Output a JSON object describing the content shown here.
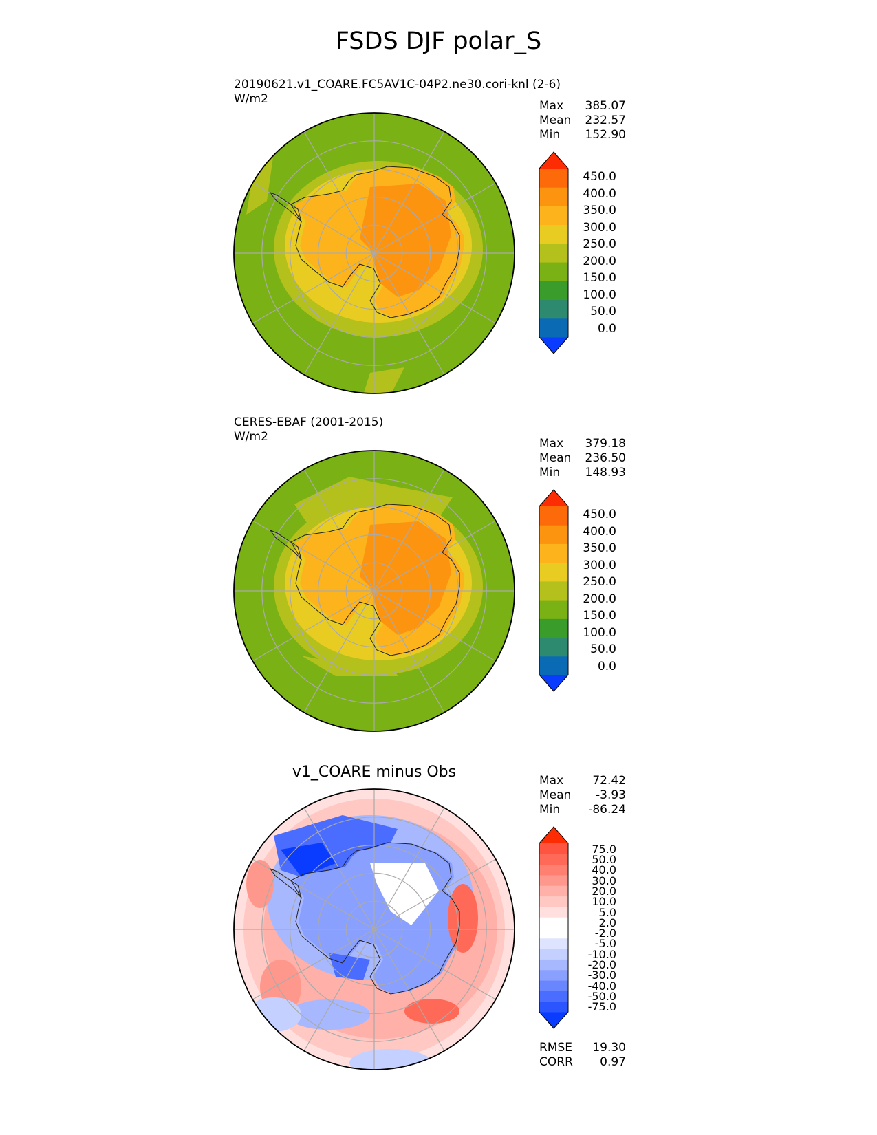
{
  "title": "FSDS DJF polar_S",
  "panels": [
    {
      "title_line1": "20190621.v1_COARE.FC5AV1C-04P2.ne30.cori-knl (2-6)",
      "units": "W/m2",
      "stats": {
        "max_label": "Max",
        "max": "385.07",
        "mean_label": "Mean",
        "mean": "232.57",
        "min_label": "Min",
        "min": "152.90"
      },
      "colorbar": {
        "colors": [
          "#0a3cff",
          "#0a6ab4",
          "#2e8a6e",
          "#3a9c2a",
          "#7ab215",
          "#b4c01c",
          "#e9cc22",
          "#fdb41c",
          "#fd9410",
          "#fd6a0a",
          "#fd2c02"
        ],
        "labels": [
          "450.0",
          "400.0",
          "350.0",
          "300.0",
          "250.0",
          "200.0",
          "150.0",
          "100.0",
          "50.0",
          "0.0"
        ]
      },
      "map": {
        "ocean": "#7ab215",
        "ring": "#b4c01c",
        "outer": "#e9cc22",
        "inner": "#fdb41c",
        "core": "#fd9410"
      }
    },
    {
      "title_line1": "CERES-EBAF (2001-2015)",
      "units": "W/m2",
      "stats": {
        "max_label": "Max",
        "max": "379.18",
        "mean_label": "Mean",
        "mean": "236.50",
        "min_label": "Min",
        "min": "148.93"
      },
      "colorbar": {
        "colors": [
          "#0a3cff",
          "#0a6ab4",
          "#2e8a6e",
          "#3a9c2a",
          "#7ab215",
          "#b4c01c",
          "#e9cc22",
          "#fdb41c",
          "#fd9410",
          "#fd6a0a",
          "#fd2c02"
        ],
        "labels": [
          "450.0",
          "400.0",
          "350.0",
          "300.0",
          "250.0",
          "200.0",
          "150.0",
          "100.0",
          "50.0",
          "0.0"
        ]
      },
      "map": {
        "ocean": "#7ab215",
        "ring": "#b4c01c",
        "outer": "#e9cc22",
        "inner": "#fdb41c",
        "core": "#fd9410"
      }
    },
    {
      "title_line1": "v1_COARE minus Obs",
      "stats": {
        "max_label": "Max",
        "max": "72.42",
        "mean_label": "Mean",
        "mean": "-3.93",
        "min_label": "Min",
        "min": "-86.24"
      },
      "colorbar": {
        "colors": [
          "#0a3cff",
          "#2a55ff",
          "#4a6cff",
          "#6a86ff",
          "#8aa0ff",
          "#a8b8ff",
          "#c4d0ff",
          "#dee4ff",
          "#ffffff",
          "#ffffff",
          "#ffe0de",
          "#ffc8c2",
          "#ffb0a8",
          "#ff988c",
          "#ff8070",
          "#ff6a58",
          "#ff5540",
          "#fd2c02"
        ],
        "labels": [
          "75.0",
          "50.0",
          "40.0",
          "30.0",
          "20.0",
          "10.0",
          "5.0",
          "2.0",
          "-2.0",
          "-5.0",
          "-10.0",
          "-20.0",
          "-30.0",
          "-40.0",
          "-50.0",
          "-75.0"
        ]
      },
      "metrics": {
        "rmse_label": "RMSE",
        "rmse": "19.30",
        "corr_label": "CORR",
        "corr": "0.97"
      }
    }
  ]
}
